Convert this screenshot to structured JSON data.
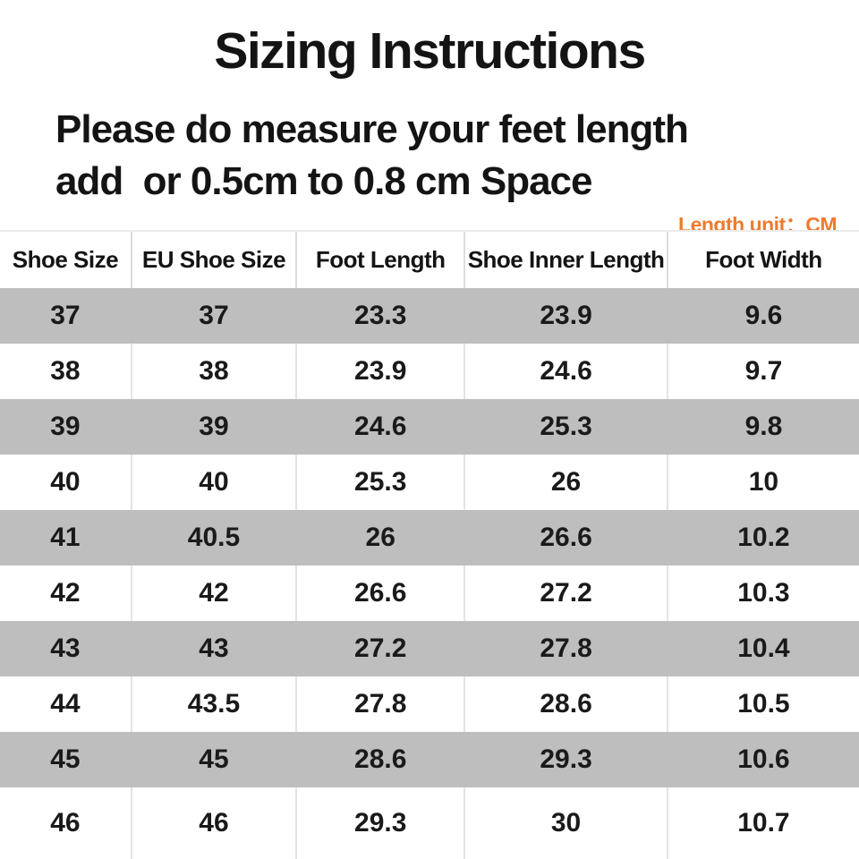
{
  "page": {
    "title": "Sizing Instructions",
    "subtitle_line1": "Please do measure your feet length",
    "subtitle_line2": "add  or 0.5cm to 0.8 cm Space",
    "unit_label": "Length unit：CM"
  },
  "colors": {
    "accent_orange": "#ed7b2f",
    "row_gray": "#bebebe",
    "text_black": "#161616",
    "divider_light": "#e4e4e4"
  },
  "chart_data": {
    "type": "table",
    "title": "Sizing Instructions",
    "unit": "CM",
    "columns": [
      "Shoe Size",
      "EU Shoe Size",
      "Foot Length",
      "Shoe Inner Length",
      "Foot Width"
    ],
    "rows": [
      [
        "37",
        "37",
        "23.3",
        "23.9",
        "9.6"
      ],
      [
        "38",
        "38",
        "23.9",
        "24.6",
        "9.7"
      ],
      [
        "39",
        "39",
        "24.6",
        "25.3",
        "9.8"
      ],
      [
        "40",
        "40",
        "25.3",
        "26",
        "10"
      ],
      [
        "41",
        "40.5",
        "26",
        "26.6",
        "10.2"
      ],
      [
        "42",
        "42",
        "26.6",
        "27.2",
        "10.3"
      ],
      [
        "43",
        "43",
        "27.2",
        "27.8",
        "10.4"
      ],
      [
        "44",
        "43.5",
        "27.8",
        "28.6",
        "10.5"
      ],
      [
        "45",
        "45",
        "28.6",
        "29.3",
        "10.6"
      ],
      [
        "46",
        "46",
        "29.3",
        "30",
        "10.7"
      ]
    ]
  }
}
